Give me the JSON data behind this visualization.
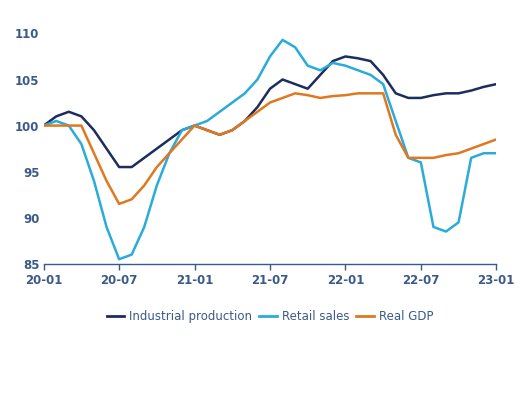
{
  "ylim": [
    85,
    112
  ],
  "yticks": [
    85,
    90,
    95,
    100,
    105,
    110
  ],
  "xtick_labels": [
    "20-01",
    "20-07",
    "21-01",
    "21-07",
    "22-01",
    "22-07",
    "23-01"
  ],
  "xtick_positions": [
    0,
    6,
    12,
    18,
    24,
    30,
    36
  ],
  "xlim": [
    0,
    36
  ],
  "series": {
    "Industrial production": {
      "color": "#1c2d5e",
      "linewidth": 1.8,
      "x": [
        0,
        1,
        2,
        3,
        4,
        5,
        6,
        7,
        8,
        9,
        10,
        11,
        12,
        13,
        14,
        15,
        16,
        17,
        18,
        19,
        20,
        21,
        22,
        23,
        24,
        25,
        26,
        27,
        28,
        29,
        30,
        31,
        32,
        33,
        34,
        35,
        36
      ],
      "y": [
        100.0,
        101.0,
        101.5,
        101.0,
        99.5,
        97.5,
        95.5,
        95.5,
        96.5,
        97.5,
        98.5,
        99.5,
        100.0,
        99.5,
        99.0,
        99.5,
        100.5,
        102.0,
        104.0,
        105.0,
        104.5,
        104.0,
        105.5,
        107.0,
        107.5,
        107.3,
        107.0,
        105.5,
        103.5,
        103.0,
        103.0,
        103.3,
        103.5,
        103.5,
        103.8,
        104.2,
        104.5
      ]
    },
    "Retail sales": {
      "color": "#29acd9",
      "linewidth": 1.8,
      "x": [
        0,
        1,
        2,
        3,
        4,
        5,
        6,
        7,
        8,
        9,
        10,
        11,
        12,
        13,
        14,
        15,
        16,
        17,
        18,
        19,
        20,
        21,
        22,
        23,
        24,
        25,
        26,
        27,
        28,
        29,
        30,
        31,
        32,
        33,
        34,
        35,
        36
      ],
      "y": [
        100.0,
        100.5,
        100.0,
        98.0,
        94.0,
        89.0,
        85.5,
        86.0,
        89.0,
        93.5,
        97.0,
        99.5,
        100.0,
        100.5,
        101.5,
        102.5,
        103.5,
        105.0,
        107.5,
        109.3,
        108.5,
        106.5,
        106.0,
        106.8,
        106.5,
        106.0,
        105.5,
        104.5,
        100.5,
        96.5,
        96.0,
        89.0,
        88.5,
        89.5,
        96.5,
        97.0,
        97.0
      ]
    },
    "Real GDP": {
      "color": "#e07820",
      "linewidth": 1.8,
      "x": [
        0,
        1,
        2,
        3,
        4,
        5,
        6,
        7,
        8,
        9,
        10,
        11,
        12,
        13,
        14,
        15,
        16,
        17,
        18,
        19,
        20,
        21,
        22,
        23,
        24,
        25,
        26,
        27,
        28,
        29,
        30,
        31,
        32,
        33,
        34,
        35,
        36
      ],
      "y": [
        100.0,
        100.0,
        100.0,
        100.0,
        97.0,
        94.0,
        91.5,
        92.0,
        93.5,
        95.5,
        97.0,
        98.5,
        100.0,
        99.5,
        99.0,
        99.5,
        100.5,
        101.5,
        102.5,
        103.0,
        103.5,
        103.3,
        103.0,
        103.2,
        103.3,
        103.5,
        103.5,
        103.5,
        99.0,
        96.5,
        96.5,
        96.5,
        96.8,
        97.0,
        97.5,
        98.0,
        98.5
      ]
    }
  },
  "legend_labels": [
    "Industrial production",
    "Retail sales",
    "Real GDP"
  ],
  "legend_colors": [
    "#1c2d5e",
    "#29acd9",
    "#e07820"
  ],
  "background_color": "#ffffff",
  "tick_color": "#3a5a8a",
  "spine_color": "#3a5a8a"
}
